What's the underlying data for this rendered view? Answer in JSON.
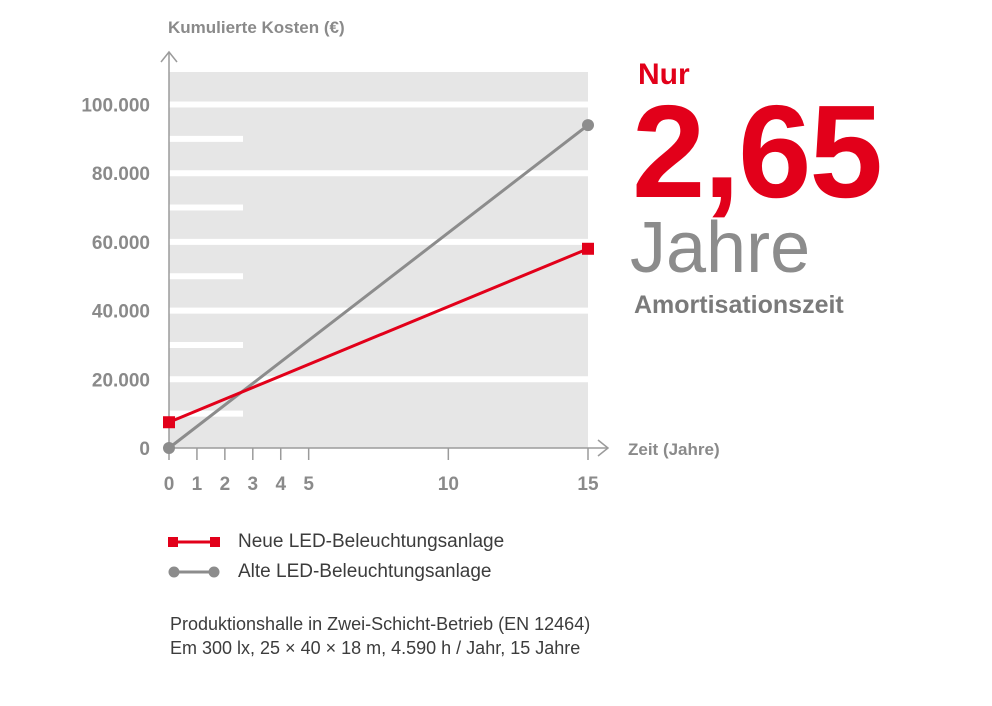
{
  "chart_data": {
    "type": "line",
    "ylabel": "Kumulierte Kosten (€)",
    "xlabel": "Zeit (Jahre)",
    "xlim": [
      0,
      15
    ],
    "ylim": [
      0,
      100000
    ],
    "y_ticks": [
      0,
      20000,
      40000,
      60000,
      80000,
      100000
    ],
    "y_tick_labels": [
      "0",
      "20.000",
      "40.000",
      "60.000",
      "80.000",
      "100.000"
    ],
    "x_ticks": [
      0,
      1,
      2,
      3,
      4,
      5,
      10,
      15
    ],
    "x_tick_labels": [
      "0",
      "1",
      "2",
      "3",
      "4",
      "5",
      "10",
      "15"
    ],
    "grid": true,
    "series": [
      {
        "name": "Neue LED-Beleuchtungsanlage",
        "color": "#e2001a",
        "marker": "square",
        "x": [
          0,
          15
        ],
        "y": [
          7500,
          58000
        ]
      },
      {
        "name": "Alte LED-Beleuchtungsanlage",
        "color": "#8c8c8c",
        "marker": "circle",
        "x": [
          0,
          15
        ],
        "y": [
          0,
          94000
        ]
      }
    ]
  },
  "headline": {
    "prefix": "Nur",
    "value": "2,65",
    "unit": "Jahre",
    "label": "Amortisationszeit"
  },
  "legend": [
    {
      "label": "Neue LED-Beleuchtungsanlage",
      "color": "#e2001a",
      "marker": "square"
    },
    {
      "label": "Alte LED-Beleuchtungsanlage",
      "color": "#8c8c8c",
      "marker": "circle"
    }
  ],
  "note": {
    "line1": "Produktionshalle in Zwei-Schicht-Betrieb (EN 12464)",
    "line2": "Em 300 lx, 25 × 40 × 18 m, 4.590 h / Jahr, 15 Jahre"
  }
}
